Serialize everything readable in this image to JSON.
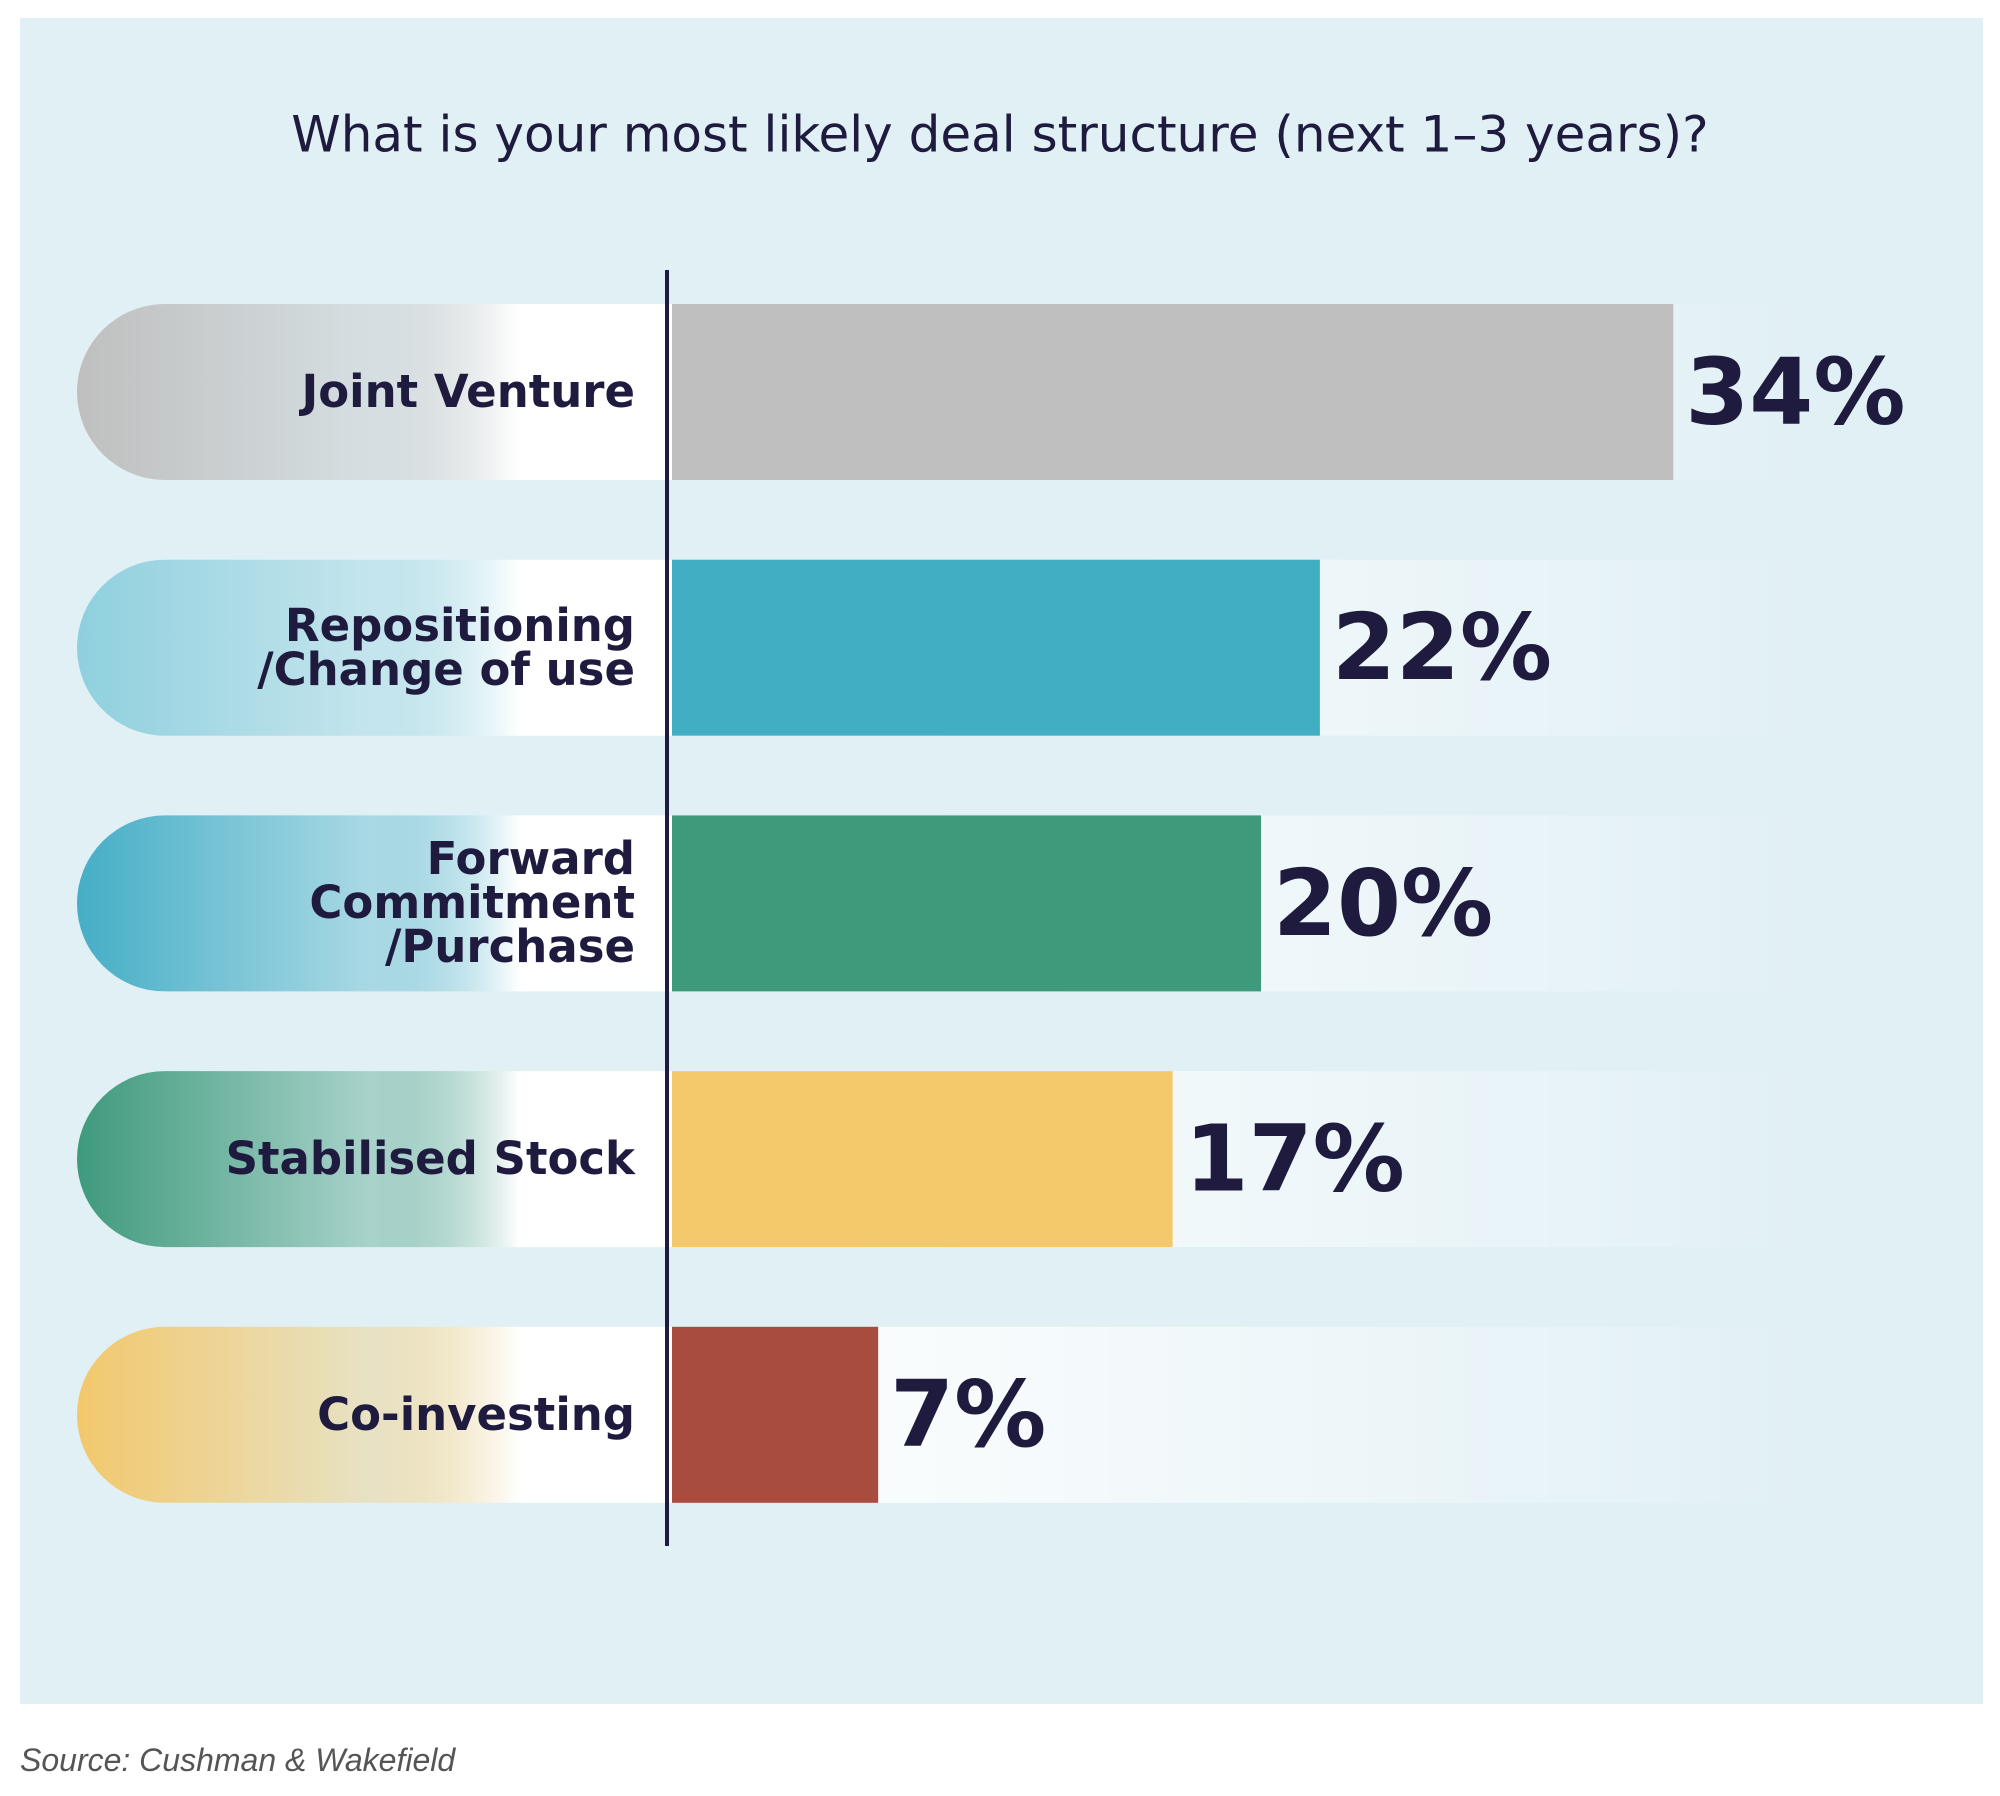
{
  "chart_data": {
    "type": "bar",
    "orientation": "horizontal",
    "title": "What is your most likely deal structure (next 1–3 years)?",
    "categories": [
      "Joint Venture",
      "Repositioning\n/Change of use",
      "Forward\nCommitment\n/Purchase",
      "Stabilised Stock",
      "Co-investing"
    ],
    "series": [
      {
        "colors": [
          "#bfbfbf",
          "#42aec4",
          "#3f9a7c",
          "#f4c96c",
          "#a84c3e"
        ],
        "values": [
          34,
          22,
          20,
          17,
          7
        ],
        "value_labels": [
          "34%",
          "22%",
          "20%",
          "17%",
          "7%"
        ]
      }
    ],
    "source": "Source: Cushman & Wakefield"
  }
}
